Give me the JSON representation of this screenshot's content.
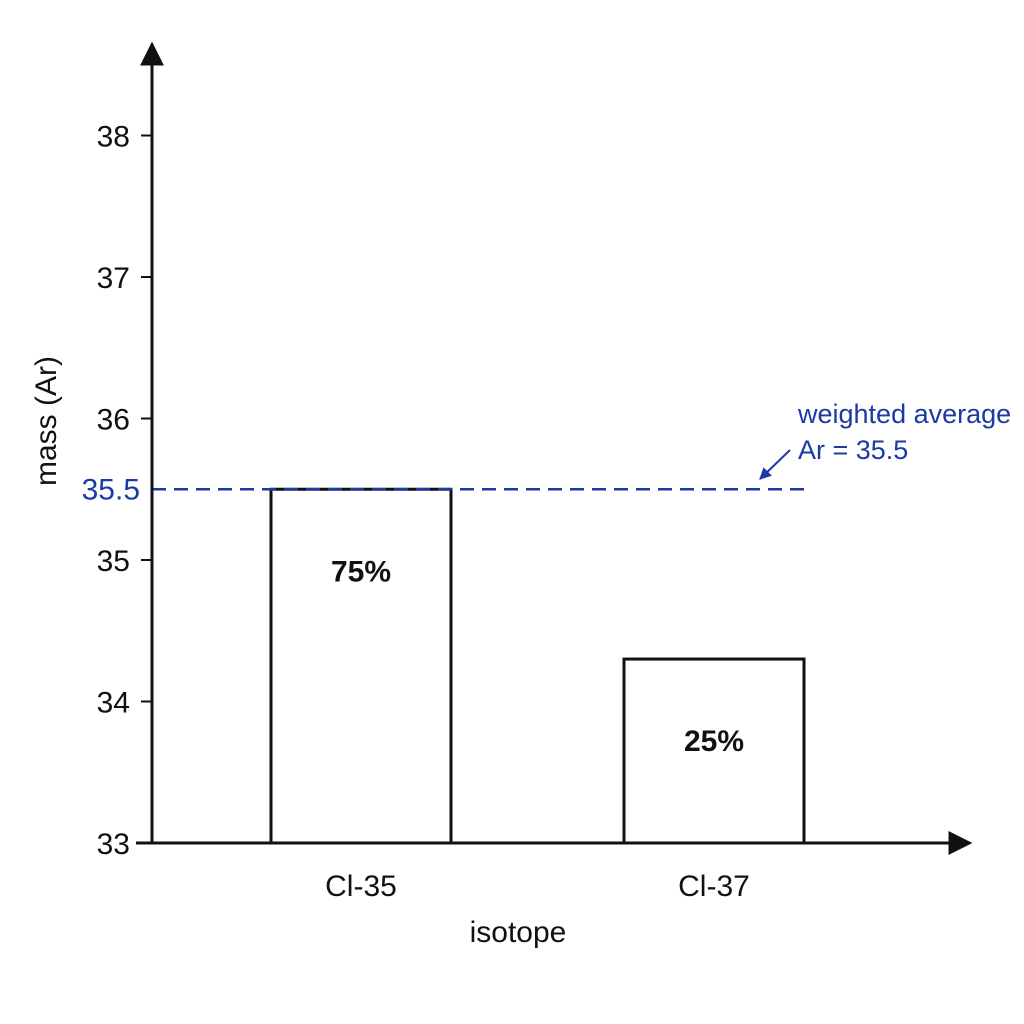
{
  "chart_data": {
    "type": "bar",
    "categories": [
      "Cl-35",
      "Cl-37"
    ],
    "values": [
      35.5,
      34.3
    ],
    "bar_labels": [
      "75%",
      "25%"
    ],
    "title": "",
    "xlabel": "isotope",
    "ylabel": "mass (Ar)",
    "ylim": [
      33,
      38.8
    ],
    "yticks": [
      33,
      34,
      35,
      36,
      37,
      38
    ],
    "ytick_labels": [
      "33",
      "34",
      "35",
      "36",
      "37",
      "38"
    ],
    "grid": false,
    "bar_fill": "#ffffff",
    "bar_stroke": "#111111",
    "reference_line": {
      "value": 35.5,
      "label": "35.5",
      "style": "dashed",
      "color": "#1a3aa6"
    },
    "annotation": {
      "lines": [
        "weighted average",
        "Ar = 35.5"
      ],
      "color": "#1a3aa6",
      "arrow": true
    }
  }
}
